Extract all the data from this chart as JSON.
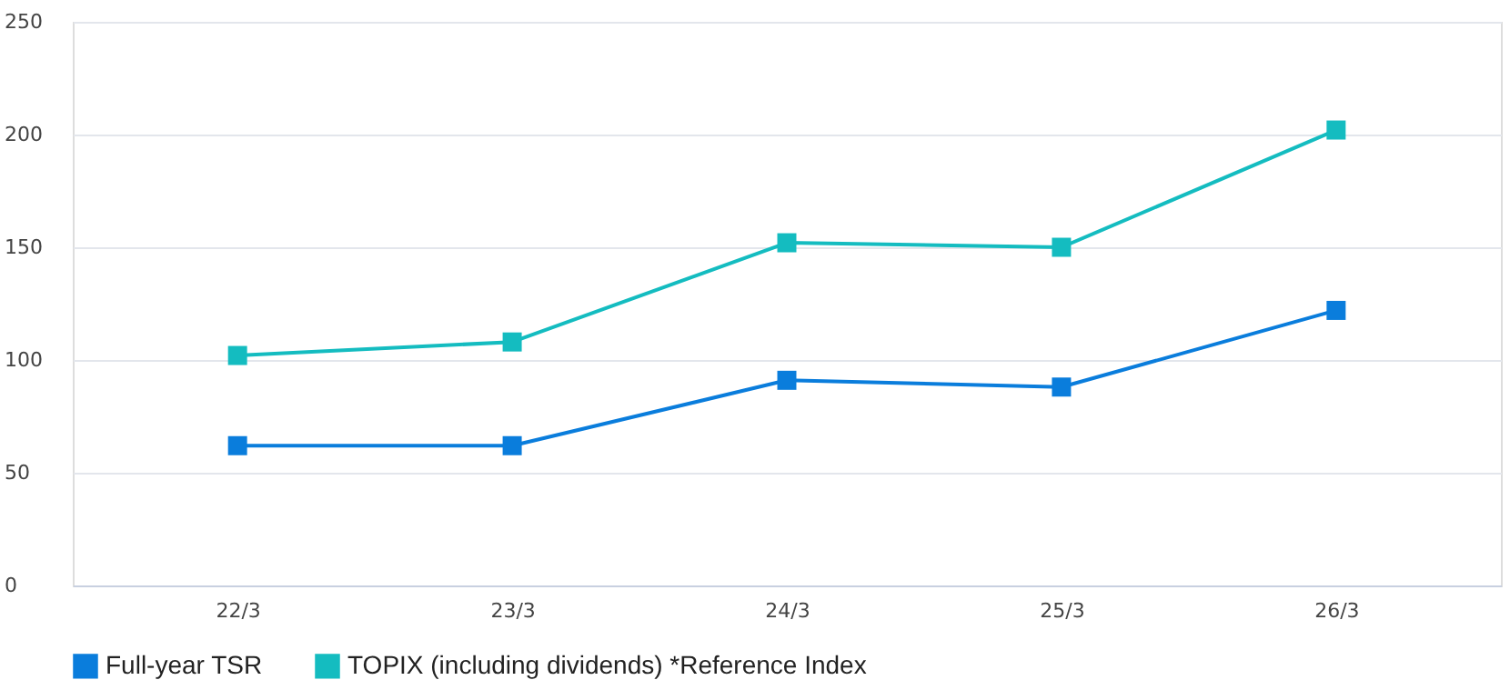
{
  "chart_data": {
    "type": "line",
    "categories": [
      "22/3",
      "23/3",
      "24/3",
      "25/3",
      "26/3"
    ],
    "series": [
      {
        "name": "Full-year TSR",
        "color": "#0a7ddc",
        "values": [
          62,
          62,
          91,
          88,
          122
        ]
      },
      {
        "name": "TOPIX (including dividends)  *Reference Index",
        "color": "#14bcc0",
        "values": [
          102,
          108,
          152,
          150,
          202
        ]
      }
    ],
    "ylim": [
      0,
      250
    ],
    "yticks": [
      0,
      50,
      100,
      150,
      200,
      250
    ],
    "grid": "y",
    "legend": "bottom",
    "marker": "square",
    "line_style": "solid"
  }
}
